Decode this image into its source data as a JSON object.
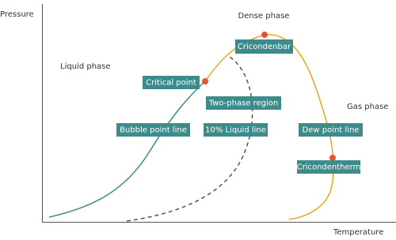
{
  "axes": {
    "y_label": "Pressure",
    "x_label": "Temperature"
  },
  "regions": {
    "dense": "Dense phase",
    "liquid": "Liquid phase",
    "gas": "Gas phase"
  },
  "labels": {
    "cricondenbar": "Cricondenbar",
    "critical_point": "Critical point",
    "two_phase": "Two-phase region",
    "bubble": "Bubble point line",
    "liquid_line": "10% Liquid line",
    "dew": "Dew point line",
    "cricondentherm": "Cricondentherm"
  }
}
